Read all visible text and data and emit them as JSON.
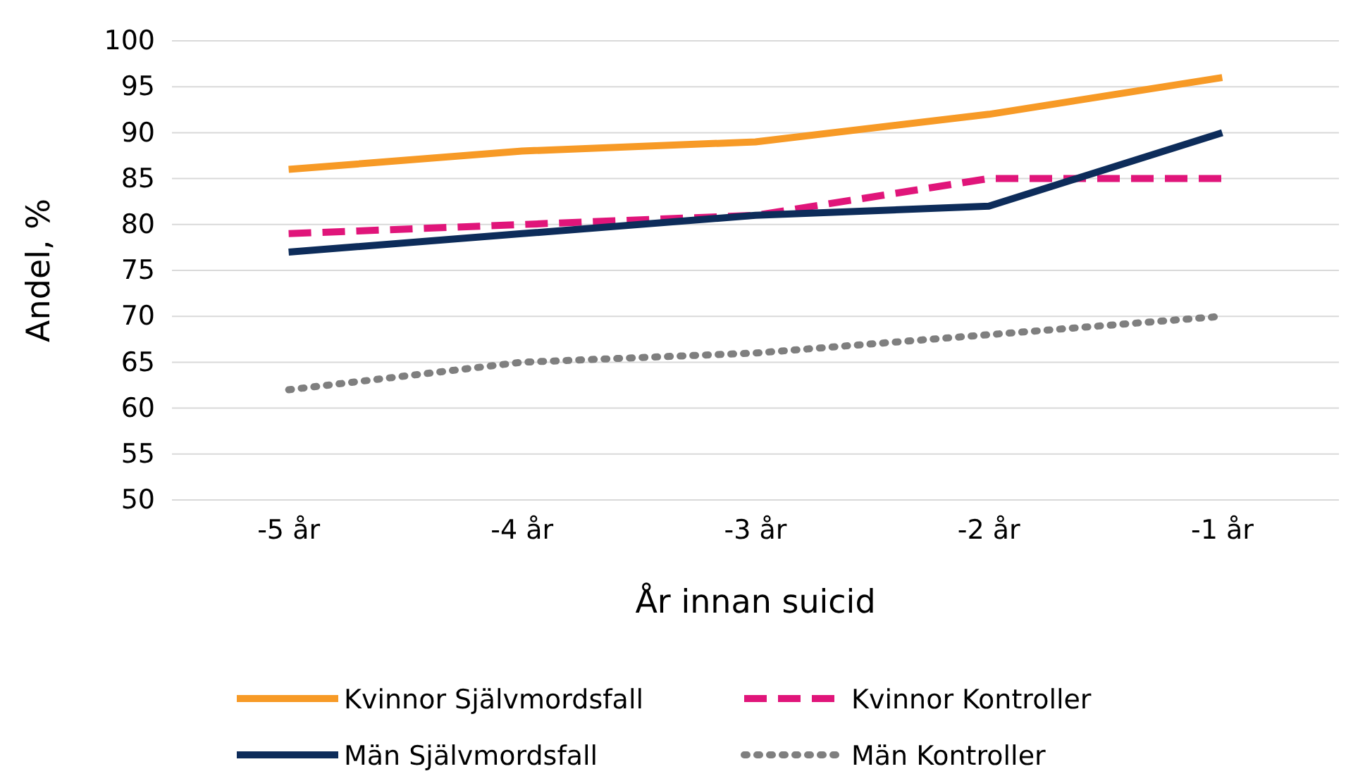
{
  "chart_data": {
    "type": "line",
    "xlabel": "År innan suicid",
    "ylabel": "Andel, %",
    "categories": [
      "-5 år",
      "-4 år",
      "-3 år",
      "-2 år",
      "-1 år"
    ],
    "series": [
      {
        "name": "Kvinnor Självmordsfall",
        "color": "#f79a26",
        "line_style": "solid",
        "values": [
          86,
          88,
          89,
          92,
          96
        ]
      },
      {
        "name": "Kvinnor Kontroller",
        "color": "#e0157a",
        "line_style": "dashed",
        "values": [
          79,
          80,
          81,
          85,
          85
        ]
      },
      {
        "name": "Män Självmordsfall",
        "color": "#0d2c5a",
        "line_style": "solid",
        "values": [
          77,
          79,
          81,
          82,
          90
        ]
      },
      {
        "name": "Män Kontroller",
        "color": "#7f7f7f",
        "line_style": "dotted",
        "values": [
          62,
          65,
          66,
          68,
          70
        ]
      }
    ],
    "ylim": [
      50,
      100
    ],
    "yticks": [
      50,
      55,
      60,
      65,
      70,
      75,
      80,
      85,
      90,
      95,
      100
    ],
    "grid": "y",
    "legend": "bottom",
    "marker": "none"
  }
}
